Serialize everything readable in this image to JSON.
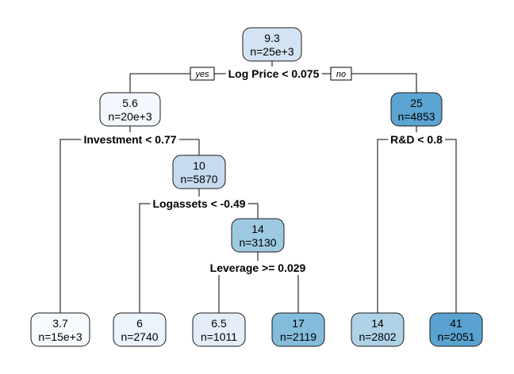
{
  "tree": {
    "branch_labels": {
      "yes": "yes",
      "no": "no"
    },
    "nodes": [
      {
        "id": "root",
        "value": "9.3",
        "n": "n=25e+3",
        "color": "#d3e3f3"
      },
      {
        "id": "n2",
        "value": "5.6",
        "n": "n=20e+3",
        "color": "#f2f8fd"
      },
      {
        "id": "n3",
        "value": "25",
        "n": "n=4853",
        "color": "#5ca4d2"
      },
      {
        "id": "n5",
        "value": "10",
        "n": "n=5870",
        "color": "#c6dbef"
      },
      {
        "id": "n11",
        "value": "14",
        "n": "n=3130",
        "color": "#9ecae1"
      },
      {
        "id": "l1",
        "value": "3.7",
        "n": "n=15e+3",
        "color": "#f7fbff"
      },
      {
        "id": "l2",
        "value": "6",
        "n": "n=2740",
        "color": "#ebf3fb"
      },
      {
        "id": "l3",
        "value": "6.5",
        "n": "n=1011",
        "color": "#e3eef8"
      },
      {
        "id": "l4",
        "value": "17",
        "n": "n=2119",
        "color": "#84bcdb"
      },
      {
        "id": "l5",
        "value": "14",
        "n": "n=2802",
        "color": "#b0d2e7"
      },
      {
        "id": "l6",
        "value": "41",
        "n": "n=2051",
        "color": "#5aa2cf"
      }
    ],
    "splits": [
      {
        "id": "s_root",
        "label": "Log Price < 0.075"
      },
      {
        "id": "s_n2",
        "label": "Investment < 0.77"
      },
      {
        "id": "s_n3",
        "label": "R&D < 0.8"
      },
      {
        "id": "s_n5",
        "label": "Logassets < -0.49"
      },
      {
        "id": "s_n11",
        "label": "Leverage >= 0.029"
      }
    ]
  }
}
